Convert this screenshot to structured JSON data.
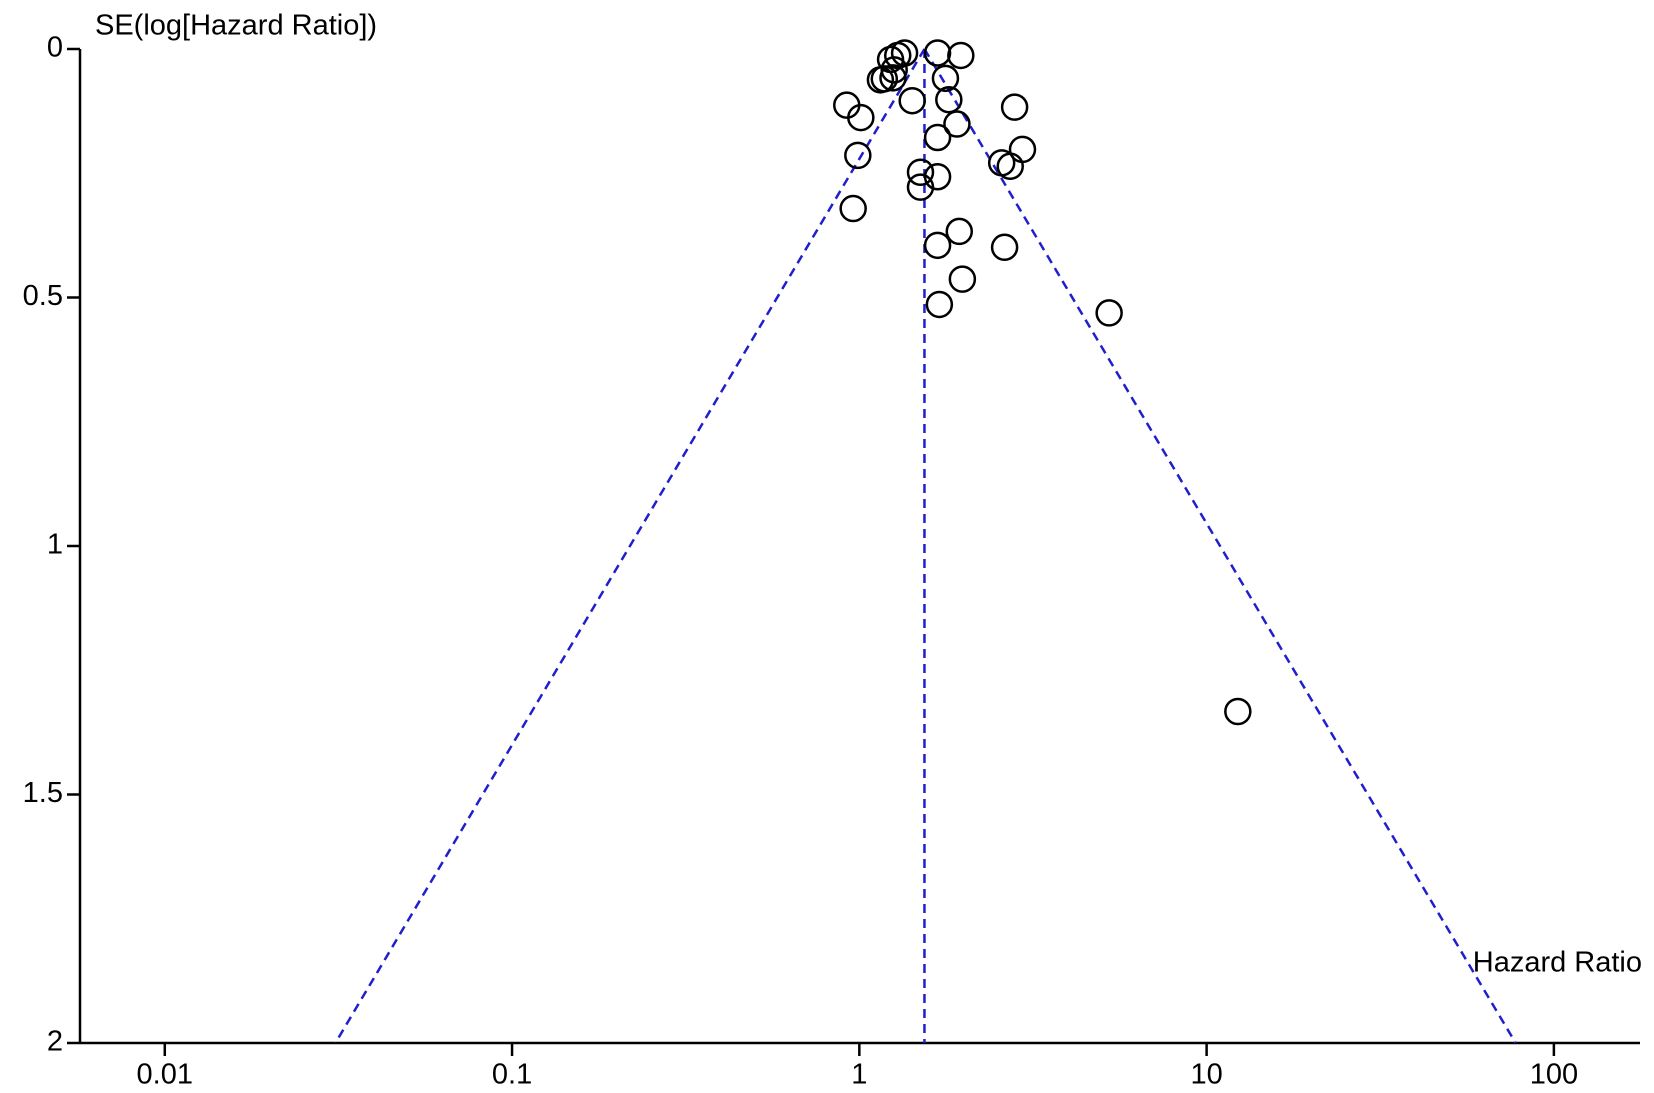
{
  "chart_data": {
    "type": "scatter",
    "y_axis_label": "SE(log[Hazard Ratio])",
    "x_axis_label": "Hazard Ratio",
    "x_log": true,
    "y_reversed": true,
    "xlim": [
      0.0057,
      177
    ],
    "ylim": [
      0,
      2
    ],
    "xticks": [
      0.01,
      0.1,
      1,
      10,
      100
    ],
    "yticks": [
      0,
      0.5,
      1,
      1.5,
      2
    ],
    "series": [
      {
        "color": "#000000",
        "x": [
          1.23,
          1.29,
          1.35,
          1.68,
          1.96,
          1.26,
          1.15,
          1.18,
          1.25,
          1.77,
          0.92,
          1.01,
          1.42,
          1.81,
          2.8,
          1.91,
          1.68,
          2.95,
          0.99,
          2.57,
          2.72,
          1.5,
          1.68,
          1.5,
          0.96,
          1.94,
          1.68,
          2.62,
          1.98,
          1.7,
          5.24,
          12.3
        ],
        "values": [
          0.021,
          0.013,
          0.008,
          0.008,
          0.013,
          0.042,
          0.062,
          0.06,
          0.058,
          0.059,
          0.113,
          0.138,
          0.104,
          0.102,
          0.117,
          0.151,
          0.178,
          0.202,
          0.214,
          0.229,
          0.236,
          0.248,
          0.257,
          0.278,
          0.321,
          0.367,
          0.395,
          0.399,
          0.463,
          0.514,
          0.531,
          1.333
        ]
      }
    ],
    "reference_lines": [
      {
        "color": "#1f1fcc",
        "x": [
          1.54,
          1.54
        ],
        "values": [
          0,
          2
        ]
      },
      {
        "color": "#1f1fcc",
        "x": [
          1.54,
          0.031
        ],
        "values": [
          0,
          2
        ]
      },
      {
        "color": "#1f1fcc",
        "x": [
          1.54,
          77.6
        ],
        "values": [
          0,
          2
        ]
      }
    ]
  }
}
